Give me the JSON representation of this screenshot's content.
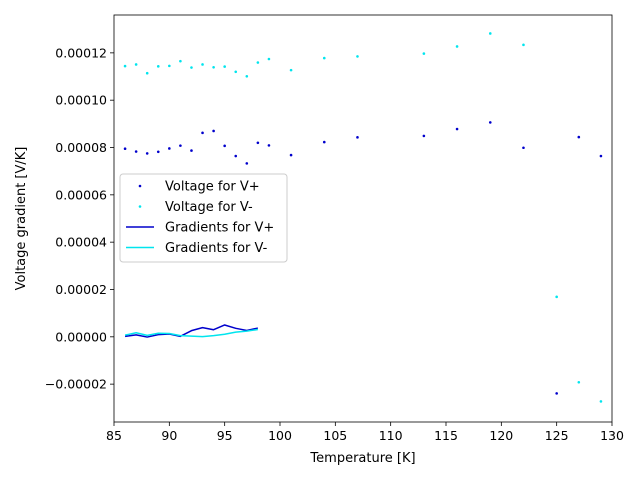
{
  "chart_data": {
    "type": "scatter",
    "xlabel": "Temperature [K]",
    "ylabel": "Voltage gradient [V/K]",
    "xlim": [
      85,
      130
    ],
    "ylim": [
      -3.6e-05,
      0.000136
    ],
    "xticks": [
      85,
      90,
      95,
      100,
      105,
      110,
      115,
      120,
      125,
      130
    ],
    "xtick_labels": [
      "85",
      "90",
      "95",
      "100",
      "105",
      "110",
      "115",
      "120",
      "125",
      "130"
    ],
    "yticks": [
      -2e-05,
      0,
      2e-05,
      4e-05,
      6e-05,
      8e-05,
      0.0001,
      0.00012
    ],
    "ytick_labels": [
      "−0.00002",
      "0.00000",
      "0.00002",
      "0.00004",
      "0.00006",
      "0.00008",
      "0.00010",
      "0.00012"
    ],
    "grid": false,
    "legend_position": "center-left",
    "series": [
      {
        "name": "Voltage for V+",
        "kind": "points",
        "color": "#0000cc",
        "x": [
          86,
          87,
          88,
          89,
          90,
          91,
          92,
          93,
          94,
          95,
          96,
          97,
          98,
          99,
          101,
          104,
          107,
          113,
          116,
          119,
          122,
          125,
          127,
          129
        ],
        "y": [
          7.95e-05,
          7.83e-05,
          7.75e-05,
          7.82e-05,
          7.96e-05,
          8.08e-05,
          7.87e-05,
          8.62e-05,
          8.7e-05,
          8.07e-05,
          7.64e-05,
          7.33e-05,
          8.2e-05,
          8.09e-05,
          7.68e-05,
          8.23e-05,
          8.43e-05,
          8.49e-05,
          8.78e-05,
          9.06e-05,
          7.99e-05,
          -2.39e-05,
          8.44e-05,
          7.64e-05
        ]
      },
      {
        "name": "Voltage for V-",
        "kind": "points",
        "color": "#00e5ee",
        "x": [
          86,
          87,
          88,
          89,
          90,
          91,
          92,
          93,
          94,
          95,
          96,
          97,
          98,
          99,
          101,
          104,
          107,
          113,
          116,
          119,
          122,
          125,
          127,
          129
        ],
        "y": [
          0.0001144,
          0.0001151,
          0.0001114,
          0.0001143,
          0.0001145,
          0.0001165,
          0.0001138,
          0.0001151,
          0.0001139,
          0.0001142,
          0.000112,
          0.0001101,
          0.0001159,
          0.0001174,
          0.0001127,
          0.0001178,
          0.0001185,
          0.0001197,
          0.0001227,
          0.0001282,
          0.0001234,
          1.69e-05,
          -1.92e-05,
          -2.73e-05
        ]
      },
      {
        "name": "Gradients for V+",
        "kind": "line",
        "color": "#0000cc",
        "x": [
          86,
          87,
          88,
          89,
          90,
          91,
          92,
          93,
          94,
          95,
          96,
          97,
          98
        ],
        "y": [
          2e-07,
          8e-07,
          -1e-07,
          9e-07,
          1.2e-06,
          2e-07,
          2.6e-06,
          3.9e-06,
          3e-06,
          5e-06,
          3.6e-06,
          2.7e-06,
          3.7e-06
        ]
      },
      {
        "name": "Gradients for V-",
        "kind": "line",
        "color": "#00e5ee",
        "x": [
          86,
          87,
          88,
          89,
          90,
          91,
          92,
          93,
          94,
          95,
          96,
          97,
          98
        ],
        "y": [
          7e-07,
          1.7e-06,
          6e-07,
          1.5e-06,
          1.4e-06,
          5e-07,
          3e-07,
          1e-07,
          5e-07,
          1.1e-06,
          2e-06,
          2.4e-06,
          3.1e-06
        ]
      }
    ]
  }
}
